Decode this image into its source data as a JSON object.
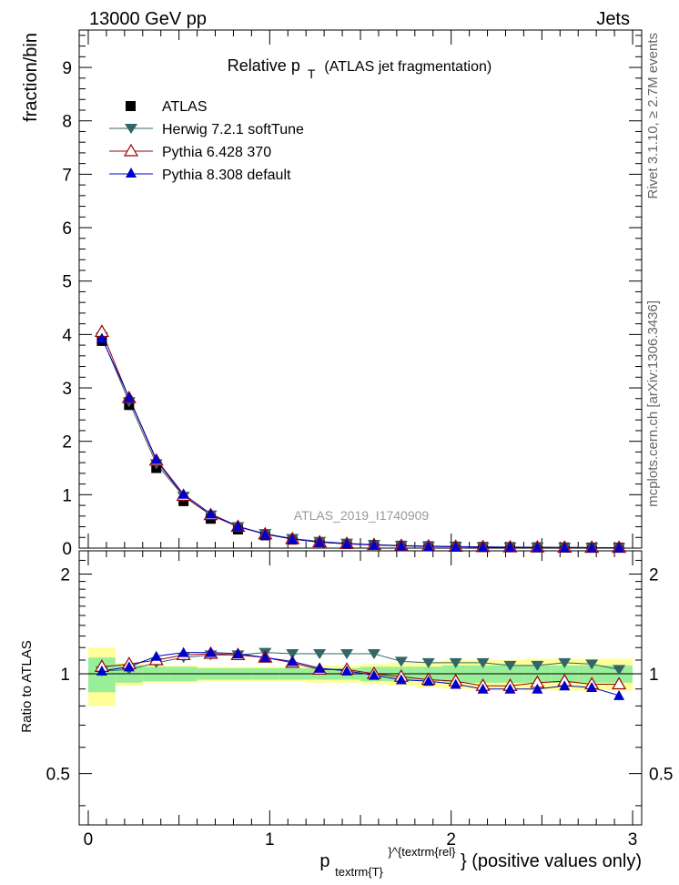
{
  "header": {
    "left": "13000 GeV pp",
    "right": "Jets"
  },
  "side_labels": {
    "rivet": "Rivet 3.1.10, ≥ 2.7M events",
    "mcplots": "mcplots.cern.ch [arXiv:1306.3436]"
  },
  "chart_data": {
    "type": "line",
    "title_main": "Relative p",
    "title_sub": "T",
    "title_rest": "(ATLAS jet fragmentation)",
    "analysis_label": "ATLAS_2019_I1740909",
    "xlabel_main": "p",
    "xlabel_sub": "textrm{T}",
    "xlabel_sup": "}^{textrm{rel}",
    "xlabel_rest": "} (positive values only)",
    "ylabel": "fraction/bin",
    "ratio_ylabel": "Ratio to ATLAS",
    "xlim": [
      -0.05,
      3.05
    ],
    "ylim": [
      0,
      9.7
    ],
    "ratio_ylim": [
      0.35,
      2.35
    ],
    "x_ticks": [
      "0",
      "1",
      "2",
      "3"
    ],
    "y_ticks": [
      "0",
      "1",
      "2",
      "3",
      "4",
      "5",
      "6",
      "7",
      "8",
      "9"
    ],
    "ratio_ticks": [
      "0.5",
      "1",
      "2"
    ],
    "x": [
      0.075,
      0.225,
      0.375,
      0.525,
      0.675,
      0.825,
      0.975,
      1.125,
      1.275,
      1.425,
      1.575,
      1.725,
      1.875,
      2.025,
      2.175,
      2.325,
      2.475,
      2.625,
      2.775,
      2.925
    ],
    "bin_edges": [
      0,
      0.15,
      0.3,
      0.45,
      0.6,
      0.75,
      0.9,
      1.05,
      1.2,
      1.35,
      1.5,
      1.65,
      1.8,
      1.95,
      2.1,
      2.25,
      2.4,
      2.55,
      2.7,
      2.85,
      3.0
    ],
    "legend": [
      "ATLAS",
      "Herwig 7.2.1 softTune",
      "Pythia 6.428 370",
      "Pythia 8.308 default"
    ],
    "series": [
      {
        "name": "ATLAS",
        "color": "#000000",
        "marker": "square",
        "values": [
          3.88,
          2.68,
          1.5,
          0.88,
          0.55,
          0.35,
          0.24,
          0.16,
          0.11,
          0.08,
          0.06,
          0.045,
          0.035,
          0.028,
          0.022,
          0.018,
          0.015,
          0.012,
          0.01,
          0.009
        ]
      },
      {
        "name": "Herwig 7.2.1 softTune",
        "color": "#336666",
        "marker": "triangle-down",
        "values": [
          3.95,
          2.74,
          1.58,
          0.97,
          0.62,
          0.4,
          0.27,
          0.18,
          0.125,
          0.09,
          0.067,
          0.049,
          0.038,
          0.03,
          0.023,
          0.019,
          0.016,
          0.013,
          0.011,
          0.0095
        ],
        "ratio": [
          1.02,
          1.03,
          1.08,
          1.12,
          1.14,
          1.14,
          1.16,
          1.15,
          1.15,
          1.15,
          1.15,
          1.09,
          1.08,
          1.08,
          1.08,
          1.06,
          1.06,
          1.08,
          1.07,
          1.03
        ]
      },
      {
        "name": "Pythia 6.428 370",
        "color": "#990000",
        "marker": "triangle-up-open",
        "values": [
          4.05,
          2.81,
          1.64,
          0.98,
          0.62,
          0.4,
          0.26,
          0.17,
          0.11,
          0.08,
          0.06,
          0.044,
          0.034,
          0.027,
          0.02,
          0.016,
          0.014,
          0.011,
          0.009,
          0.008
        ],
        "ratio": [
          1.05,
          1.07,
          1.1,
          1.14,
          1.15,
          1.14,
          1.12,
          1.08,
          1.03,
          1.03,
          1.0,
          0.98,
          0.96,
          0.95,
          0.92,
          0.92,
          0.94,
          0.95,
          0.93,
          0.93
        ]
      },
      {
        "name": "Pythia 8.308 default",
        "color": "#0000cc",
        "marker": "triangle-up",
        "values": [
          3.93,
          2.82,
          1.66,
          1.01,
          0.64,
          0.41,
          0.26,
          0.17,
          0.11,
          0.08,
          0.06,
          0.043,
          0.033,
          0.026,
          0.02,
          0.016,
          0.013,
          0.011,
          0.009,
          0.0078
        ],
        "ratio": [
          1.02,
          1.05,
          1.13,
          1.16,
          1.16,
          1.15,
          1.12,
          1.09,
          1.04,
          1.02,
          0.99,
          0.96,
          0.95,
          0.93,
          0.9,
          0.9,
          0.9,
          0.92,
          0.91,
          0.86
        ]
      }
    ],
    "ratio_band_green": [
      0.12,
      0.06,
      0.05,
      0.05,
      0.04,
      0.04,
      0.04,
      0.04,
      0.04,
      0.04,
      0.05,
      0.05,
      0.05,
      0.06,
      0.06,
      0.06,
      0.06,
      0.06,
      0.06,
      0.06
    ],
    "ratio_band_yellow": [
      0.2,
      0.08,
      0.06,
      0.06,
      0.05,
      0.05,
      0.05,
      0.05,
      0.06,
      0.06,
      0.07,
      0.08,
      0.09,
      0.1,
      0.1,
      0.1,
      0.11,
      0.11,
      0.11,
      0.11
    ]
  }
}
